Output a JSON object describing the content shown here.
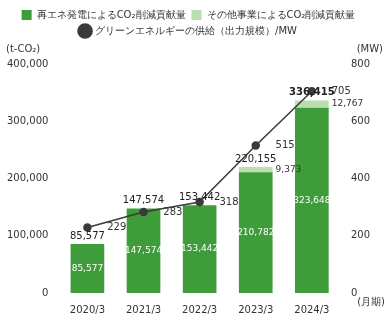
{
  "chart_data": {
    "type": "bar",
    "stacked": true,
    "data_labels": true,
    "grid": false,
    "legend": "top",
    "ylabel": "(t-CO₂)",
    "y2label": "(MW)",
    "xlabel": "(月期)",
    "categories": [
      "2020/3",
      "2021/3",
      "2022/3",
      "2023/3",
      "2024/3"
    ],
    "series": [
      {
        "name": "再エネ発電によるCO₂削減貢献量",
        "type": "bar",
        "color": "#3f9c3b",
        "values": [
          85577,
          147574,
          153442,
          210782,
          323648
        ],
        "value_labels": [
          "85,577",
          "147,574",
          "153,442",
          "210,782",
          "323,648"
        ]
      },
      {
        "name": "その他事業によるCO₂削減貢献量",
        "type": "bar",
        "color": "#b9deb0",
        "values": [
          null,
          null,
          null,
          9373,
          12767
        ],
        "value_labels": [
          null,
          null,
          null,
          "9,373",
          "12,767"
        ]
      },
      {
        "name": "グリーンエネルギーの供給（出力規模）/MW",
        "type": "line",
        "axis": "y2",
        "color": "#3a3a3a",
        "marker": "circle",
        "values": [
          229,
          283,
          318,
          515,
          705
        ]
      }
    ],
    "total_labels": [
      "85,577",
      "147,574",
      "153,442",
      "220,155",
      "336,415"
    ],
    "ylim": [
      0,
      400000
    ],
    "yticks": [
      0,
      {
        "value": 100000,
        "label": "100,000"
      },
      {
        "value": 200000,
        "label": "200,000"
      },
      {
        "value": 300000,
        "label": "300,000"
      },
      {
        "value": 400000,
        "label": "400,000"
      }
    ],
    "y2lim": [
      0,
      800
    ],
    "y2ticks": [
      0,
      200,
      400,
      600,
      800
    ]
  }
}
